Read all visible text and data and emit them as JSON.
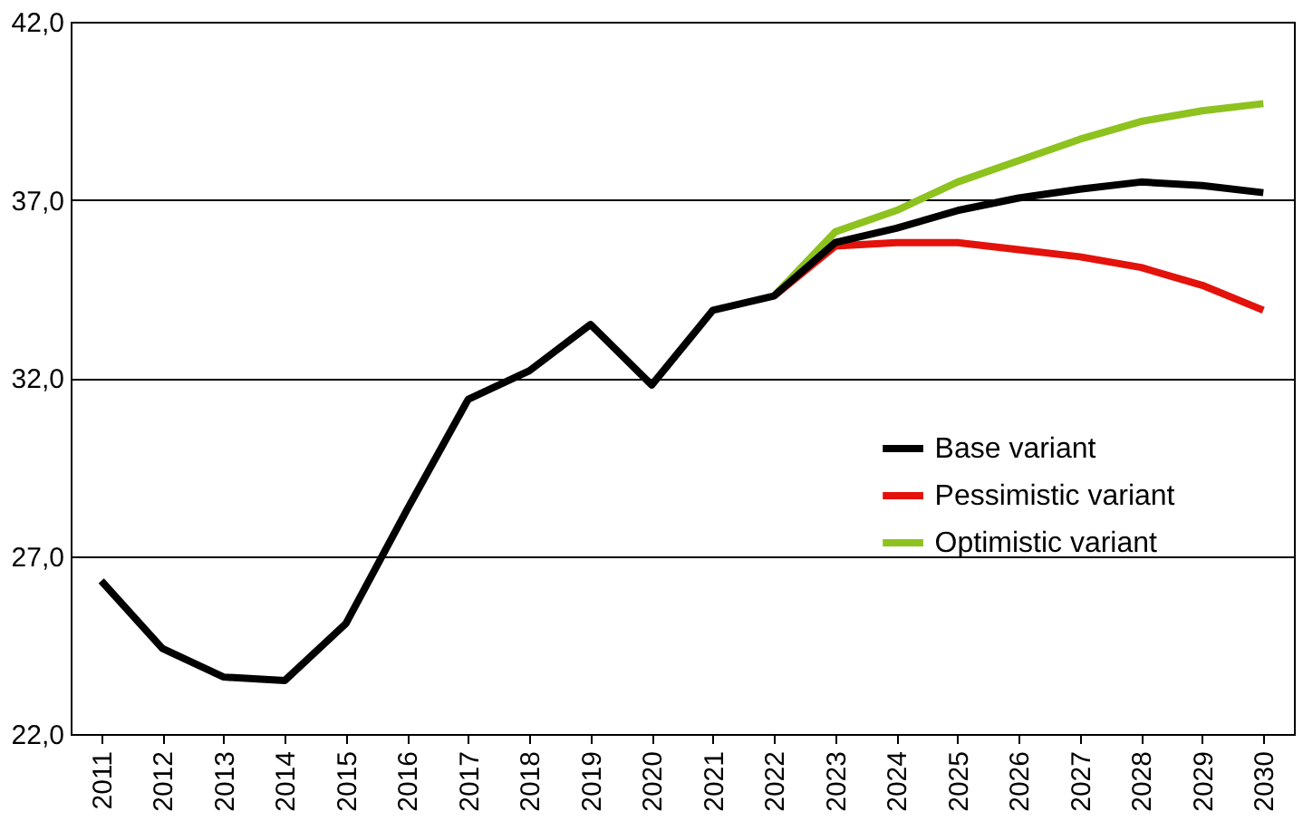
{
  "chart_data": {
    "type": "line",
    "categories": [
      "2011",
      "2012",
      "2013",
      "2014",
      "2015",
      "2016",
      "2017",
      "2018",
      "2019",
      "2020",
      "2021",
      "2022",
      "2023",
      "2024",
      "2025",
      "2026",
      "2027",
      "2028",
      "2029",
      "2030"
    ],
    "series": [
      {
        "name": "Optimistic variant",
        "color": "#8dc21f",
        "values": [
          null,
          null,
          null,
          null,
          null,
          null,
          null,
          null,
          null,
          null,
          null,
          34.3,
          36.1,
          36.7,
          37.5,
          38.1,
          38.7,
          39.2,
          39.5,
          39.7
        ]
      },
      {
        "name": "Pessimistic variant",
        "color": "#e3120b",
        "values": [
          null,
          null,
          null,
          null,
          null,
          null,
          null,
          null,
          null,
          null,
          null,
          34.3,
          35.7,
          35.8,
          35.8,
          35.6,
          35.4,
          35.1,
          34.6,
          33.9
        ]
      },
      {
        "name": "Base variant",
        "color": "#000000",
        "values": [
          26.3,
          24.4,
          23.6,
          23.5,
          25.1,
          28.3,
          31.4,
          32.2,
          33.5,
          31.8,
          33.9,
          34.3,
          35.8,
          36.2,
          36.7,
          37.05,
          37.3,
          37.5,
          37.4,
          37.2
        ]
      }
    ],
    "ylim": [
      22,
      42
    ],
    "yticks": [
      {
        "value": 22,
        "label": "22,0"
      },
      {
        "value": 27,
        "label": "27,0"
      },
      {
        "value": 32,
        "label": "32,0"
      },
      {
        "value": 37,
        "label": "37,0"
      },
      {
        "value": 42,
        "label": "42,0"
      }
    ],
    "grid": "y",
    "legend": "right",
    "marker": "none",
    "line_style": "solid"
  }
}
